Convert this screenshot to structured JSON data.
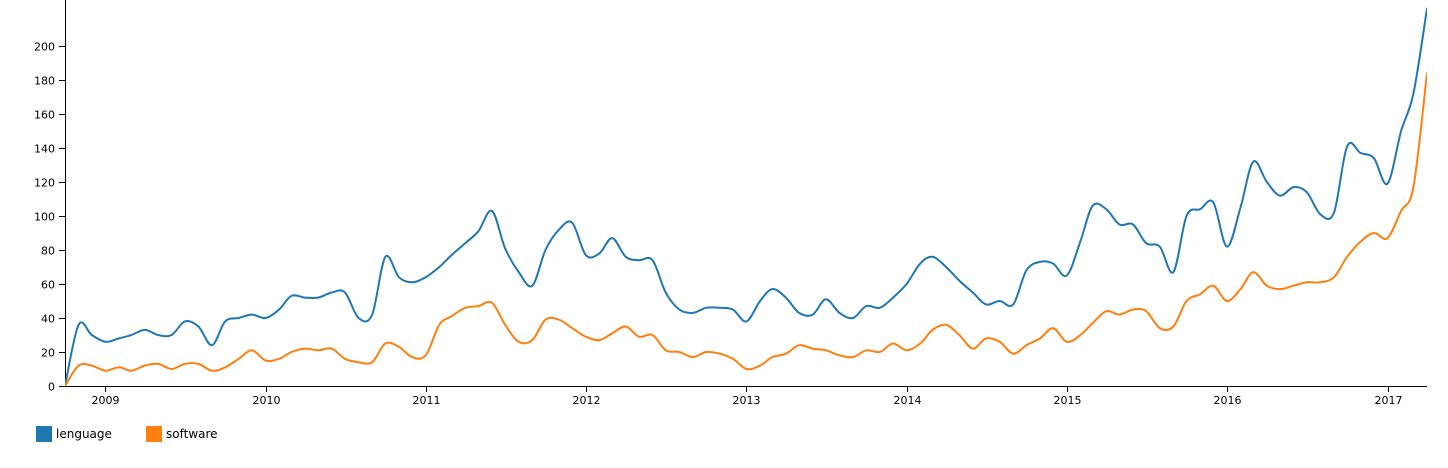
{
  "chart_data": {
    "type": "line",
    "title": "",
    "xlabel": "",
    "ylabel": "",
    "x_range": [
      "2008-10-01",
      "2017-04-01"
    ],
    "ylim": [
      0,
      200
    ],
    "y_ticks": [
      0,
      20,
      40,
      60,
      80,
      100,
      120,
      140,
      160,
      180,
      200
    ],
    "x_ticks": [
      {
        "label": "2009",
        "date": "2009-01-01"
      },
      {
        "label": "2010",
        "date": "2010-01-01"
      },
      {
        "label": "2011",
        "date": "2011-01-01"
      },
      {
        "label": "2012",
        "date": "2012-01-01"
      },
      {
        "label": "2013",
        "date": "2013-01-01"
      },
      {
        "label": "2014",
        "date": "2014-01-01"
      },
      {
        "label": "2015",
        "date": "2015-01-01"
      },
      {
        "label": "2016",
        "date": "2016-01-01"
      },
      {
        "label": "2017",
        "date": "2017-01-01"
      }
    ],
    "grid": false,
    "legend": "bottom-left",
    "series": [
      {
        "name": "lenguage",
        "color": "#1f77b4",
        "points": [
          [
            "2008-10-01",
            0
          ],
          [
            "2008-11-01",
            36
          ],
          [
            "2008-12-01",
            30
          ],
          [
            "2009-01-01",
            26
          ],
          [
            "2009-02-01",
            28
          ],
          [
            "2009-03-01",
            30
          ],
          [
            "2009-04-01",
            33
          ],
          [
            "2009-05-01",
            30
          ],
          [
            "2009-06-01",
            30
          ],
          [
            "2009-07-01",
            38
          ],
          [
            "2009-08-01",
            35
          ],
          [
            "2009-09-01",
            24
          ],
          [
            "2009-10-01",
            38
          ],
          [
            "2009-11-01",
            40
          ],
          [
            "2009-12-01",
            42
          ],
          [
            "2010-01-01",
            40
          ],
          [
            "2010-02-01",
            45
          ],
          [
            "2010-03-01",
            53
          ],
          [
            "2010-04-01",
            52
          ],
          [
            "2010-05-01",
            52
          ],
          [
            "2010-06-01",
            55
          ],
          [
            "2010-07-01",
            55
          ],
          [
            "2010-08-01",
            40
          ],
          [
            "2010-09-01",
            42
          ],
          [
            "2010-10-01",
            76
          ],
          [
            "2010-11-01",
            64
          ],
          [
            "2010-12-01",
            61
          ],
          [
            "2011-01-01",
            64
          ],
          [
            "2011-02-01",
            70
          ],
          [
            "2011-03-01",
            77
          ],
          [
            "2011-04-01",
            84
          ],
          [
            "2011-05-01",
            91
          ],
          [
            "2011-06-01",
            103
          ],
          [
            "2011-07-01",
            81
          ],
          [
            "2011-08-01",
            67
          ],
          [
            "2011-09-01",
            59
          ],
          [
            "2011-10-01",
            80
          ],
          [
            "2011-11-01",
            92
          ],
          [
            "2011-12-01",
            96
          ],
          [
            "2012-01-01",
            77
          ],
          [
            "2012-02-01",
            78
          ],
          [
            "2012-03-01",
            87
          ],
          [
            "2012-04-01",
            76
          ],
          [
            "2012-05-01",
            74
          ],
          [
            "2012-06-01",
            74
          ],
          [
            "2012-07-01",
            55
          ],
          [
            "2012-08-01",
            45
          ],
          [
            "2012-09-01",
            43
          ],
          [
            "2012-10-01",
            46
          ],
          [
            "2012-11-01",
            46
          ],
          [
            "2012-12-01",
            45
          ],
          [
            "2013-01-01",
            38
          ],
          [
            "2013-02-01",
            50
          ],
          [
            "2013-03-01",
            57
          ],
          [
            "2013-04-01",
            52
          ],
          [
            "2013-05-01",
            43
          ],
          [
            "2013-06-01",
            42
          ],
          [
            "2013-07-01",
            51
          ],
          [
            "2013-08-01",
            43
          ],
          [
            "2013-09-01",
            40
          ],
          [
            "2013-10-01",
            47
          ],
          [
            "2013-11-01",
            46
          ],
          [
            "2013-12-01",
            52
          ],
          [
            "2014-01-01",
            60
          ],
          [
            "2014-02-01",
            72
          ],
          [
            "2014-03-01",
            76
          ],
          [
            "2014-04-01",
            70
          ],
          [
            "2014-05-01",
            62
          ],
          [
            "2014-06-01",
            55
          ],
          [
            "2014-07-01",
            48
          ],
          [
            "2014-08-01",
            50
          ],
          [
            "2014-09-01",
            48
          ],
          [
            "2014-10-01",
            68
          ],
          [
            "2014-11-01",
            73
          ],
          [
            "2014-12-01",
            72
          ],
          [
            "2015-01-01",
            65
          ],
          [
            "2015-02-01",
            85
          ],
          [
            "2015-03-01",
            106
          ],
          [
            "2015-04-01",
            104
          ],
          [
            "2015-05-01",
            95
          ],
          [
            "2015-06-01",
            95
          ],
          [
            "2015-07-01",
            84
          ],
          [
            "2015-08-01",
            82
          ],
          [
            "2015-09-01",
            67
          ],
          [
            "2015-10-01",
            100
          ],
          [
            "2015-11-01",
            104
          ],
          [
            "2015-12-01",
            108
          ],
          [
            "2016-01-01",
            82
          ],
          [
            "2016-02-01",
            105
          ],
          [
            "2016-03-01",
            132
          ],
          [
            "2016-04-01",
            120
          ],
          [
            "2016-05-01",
            112
          ],
          [
            "2016-06-01",
            117
          ],
          [
            "2016-07-01",
            114
          ],
          [
            "2016-08-01",
            101
          ],
          [
            "2016-09-01",
            102
          ],
          [
            "2016-10-01",
            141
          ],
          [
            "2016-11-01",
            137
          ],
          [
            "2016-12-01",
            134
          ],
          [
            "2017-01-01",
            119
          ],
          [
            "2017-02-01",
            150
          ],
          [
            "2017-03-01",
            172
          ],
          [
            "2017-04-01",
            222
          ]
        ]
      },
      {
        "name": "software",
        "color": "#ff7f0e",
        "points": [
          [
            "2008-10-01",
            0
          ],
          [
            "2008-11-01",
            12
          ],
          [
            "2008-12-01",
            12
          ],
          [
            "2009-01-01",
            9
          ],
          [
            "2009-02-01",
            11
          ],
          [
            "2009-03-01",
            9
          ],
          [
            "2009-04-01",
            12
          ],
          [
            "2009-05-01",
            13
          ],
          [
            "2009-06-01",
            10
          ],
          [
            "2009-07-01",
            13
          ],
          [
            "2009-08-01",
            13
          ],
          [
            "2009-09-01",
            9
          ],
          [
            "2009-10-01",
            11
          ],
          [
            "2009-11-01",
            16
          ],
          [
            "2009-12-01",
            21
          ],
          [
            "2010-01-01",
            15
          ],
          [
            "2010-02-01",
            16
          ],
          [
            "2010-03-01",
            20
          ],
          [
            "2010-04-01",
            22
          ],
          [
            "2010-05-01",
            21
          ],
          [
            "2010-06-01",
            22
          ],
          [
            "2010-07-01",
            16
          ],
          [
            "2010-08-01",
            14
          ],
          [
            "2010-09-01",
            14
          ],
          [
            "2010-10-01",
            25
          ],
          [
            "2010-11-01",
            23
          ],
          [
            "2010-12-01",
            17
          ],
          [
            "2011-01-01",
            18
          ],
          [
            "2011-02-01",
            36
          ],
          [
            "2011-03-01",
            41
          ],
          [
            "2011-04-01",
            46
          ],
          [
            "2011-05-01",
            47
          ],
          [
            "2011-06-01",
            49
          ],
          [
            "2011-07-01",
            36
          ],
          [
            "2011-08-01",
            26
          ],
          [
            "2011-09-01",
            27
          ],
          [
            "2011-10-01",
            39
          ],
          [
            "2011-11-01",
            39
          ],
          [
            "2011-12-01",
            34
          ],
          [
            "2012-01-01",
            29
          ],
          [
            "2012-02-01",
            27
          ],
          [
            "2012-03-01",
            31
          ],
          [
            "2012-04-01",
            35
          ],
          [
            "2012-05-01",
            29
          ],
          [
            "2012-06-01",
            30
          ],
          [
            "2012-07-01",
            21
          ],
          [
            "2012-08-01",
            20
          ],
          [
            "2012-09-01",
            17
          ],
          [
            "2012-10-01",
            20
          ],
          [
            "2012-11-01",
            19
          ],
          [
            "2012-12-01",
            16
          ],
          [
            "2013-01-01",
            10
          ],
          [
            "2013-02-01",
            12
          ],
          [
            "2013-03-01",
            17
          ],
          [
            "2013-04-01",
            19
          ],
          [
            "2013-05-01",
            24
          ],
          [
            "2013-06-01",
            22
          ],
          [
            "2013-07-01",
            21
          ],
          [
            "2013-08-01",
            18
          ],
          [
            "2013-09-01",
            17
          ],
          [
            "2013-10-01",
            21
          ],
          [
            "2013-11-01",
            20
          ],
          [
            "2013-12-01",
            25
          ],
          [
            "2014-01-01",
            21
          ],
          [
            "2014-02-01",
            25
          ],
          [
            "2014-03-01",
            33
          ],
          [
            "2014-04-01",
            36
          ],
          [
            "2014-05-01",
            30
          ],
          [
            "2014-06-01",
            22
          ],
          [
            "2014-07-01",
            28
          ],
          [
            "2014-08-01",
            26
          ],
          [
            "2014-09-01",
            19
          ],
          [
            "2014-10-01",
            24
          ],
          [
            "2014-11-01",
            28
          ],
          [
            "2014-12-01",
            34
          ],
          [
            "2015-01-01",
            26
          ],
          [
            "2015-02-01",
            30
          ],
          [
            "2015-03-01",
            37
          ],
          [
            "2015-04-01",
            44
          ],
          [
            "2015-05-01",
            42
          ],
          [
            "2015-06-01",
            45
          ],
          [
            "2015-07-01",
            44
          ],
          [
            "2015-08-01",
            34
          ],
          [
            "2015-09-01",
            35
          ],
          [
            "2015-10-01",
            50
          ],
          [
            "2015-11-01",
            54
          ],
          [
            "2015-12-01",
            59
          ],
          [
            "2016-01-01",
            50
          ],
          [
            "2016-02-01",
            57
          ],
          [
            "2016-03-01",
            67
          ],
          [
            "2016-04-01",
            59
          ],
          [
            "2016-05-01",
            57
          ],
          [
            "2016-06-01",
            59
          ],
          [
            "2016-07-01",
            61
          ],
          [
            "2016-08-01",
            61
          ],
          [
            "2016-09-01",
            64
          ],
          [
            "2016-10-01",
            76
          ],
          [
            "2016-11-01",
            85
          ],
          [
            "2016-12-01",
            90
          ],
          [
            "2017-01-01",
            87
          ],
          [
            "2017-02-01",
            103
          ],
          [
            "2017-03-01",
            117
          ],
          [
            "2017-04-01",
            184
          ]
        ]
      }
    ]
  }
}
